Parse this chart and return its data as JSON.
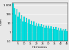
{
  "title": "",
  "xlabel": "Harmonics",
  "ylabel": "CNm",
  "bar_color": "#00e8e8",
  "bar_edgecolor": "#009999",
  "background_color": "#e8e8e8",
  "plot_bg_color": "#e8e8e8",
  "ylim_log": [
    0.1,
    2000
  ],
  "yticks": [
    0.1,
    1,
    10,
    100,
    1000
  ],
  "ytick_labels": [
    "0,1",
    "1",
    "10",
    "100",
    "1 000"
  ],
  "harmonics": [
    1,
    2,
    3,
    4,
    5,
    6,
    7,
    8,
    9,
    10,
    11,
    12,
    13,
    14,
    15,
    16,
    17,
    18,
    19,
    20,
    21,
    22,
    23,
    24,
    25,
    26,
    27,
    28,
    29,
    30,
    31,
    32,
    33,
    34,
    35,
    36,
    37,
    38,
    39,
    40,
    41,
    42,
    43,
    44,
    45
  ],
  "values": [
    1500,
    420,
    85,
    350,
    52,
    155,
    32,
    75,
    16,
    50,
    13,
    38,
    10,
    26,
    8,
    19,
    6,
    14,
    5,
    11,
    4.5,
    9.5,
    4,
    8,
    3.5,
    6.5,
    3,
    5.5,
    2.8,
    4.8,
    2.5,
    4.2,
    2.2,
    3.8,
    2.0,
    3.3,
    1.8,
    2.9,
    1.6,
    2.5,
    1.5,
    2.2,
    1.4,
    2.0,
    1.3
  ]
}
